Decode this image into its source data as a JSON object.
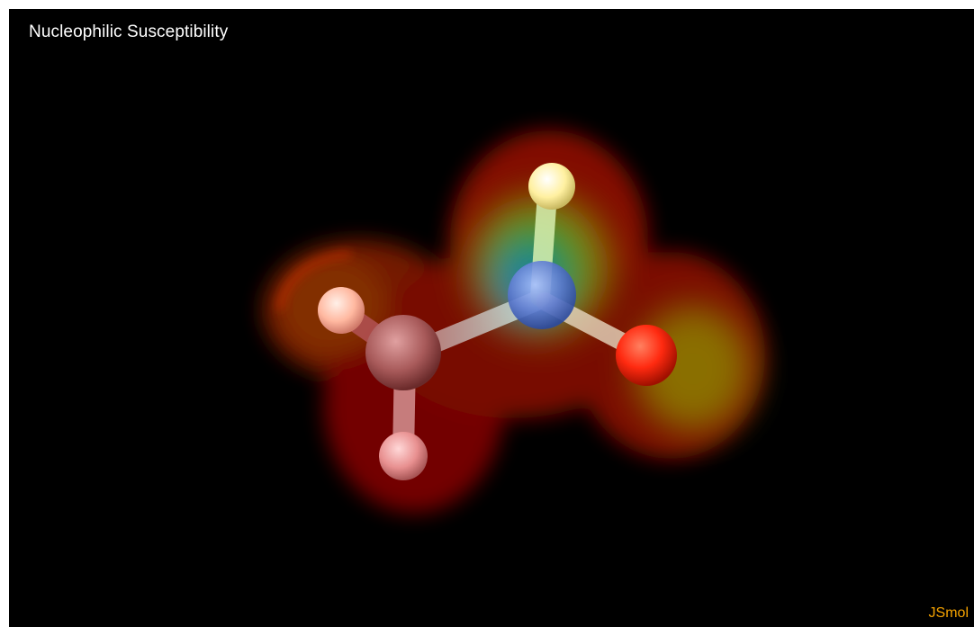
{
  "viewer": {
    "title": "Nucleophilic Susceptibility",
    "brand": "JSmol",
    "background_color": "#000000",
    "title_color": "#ffffff",
    "brand_color": "#f5a300"
  },
  "molecule": {
    "surface": "nucleophilic-susceptibility-isosurface",
    "atoms": [
      {
        "element": "C",
        "color": "#b56a6a"
      },
      {
        "element": "N",
        "color": "#5f7fd6"
      },
      {
        "element": "O",
        "color": "#ff2a10"
      },
      {
        "element": "H",
        "color": "#ffc8b8"
      },
      {
        "element": "H",
        "color": "#f0a0a0"
      },
      {
        "element": "H",
        "color": "#fff0a8"
      }
    ]
  }
}
